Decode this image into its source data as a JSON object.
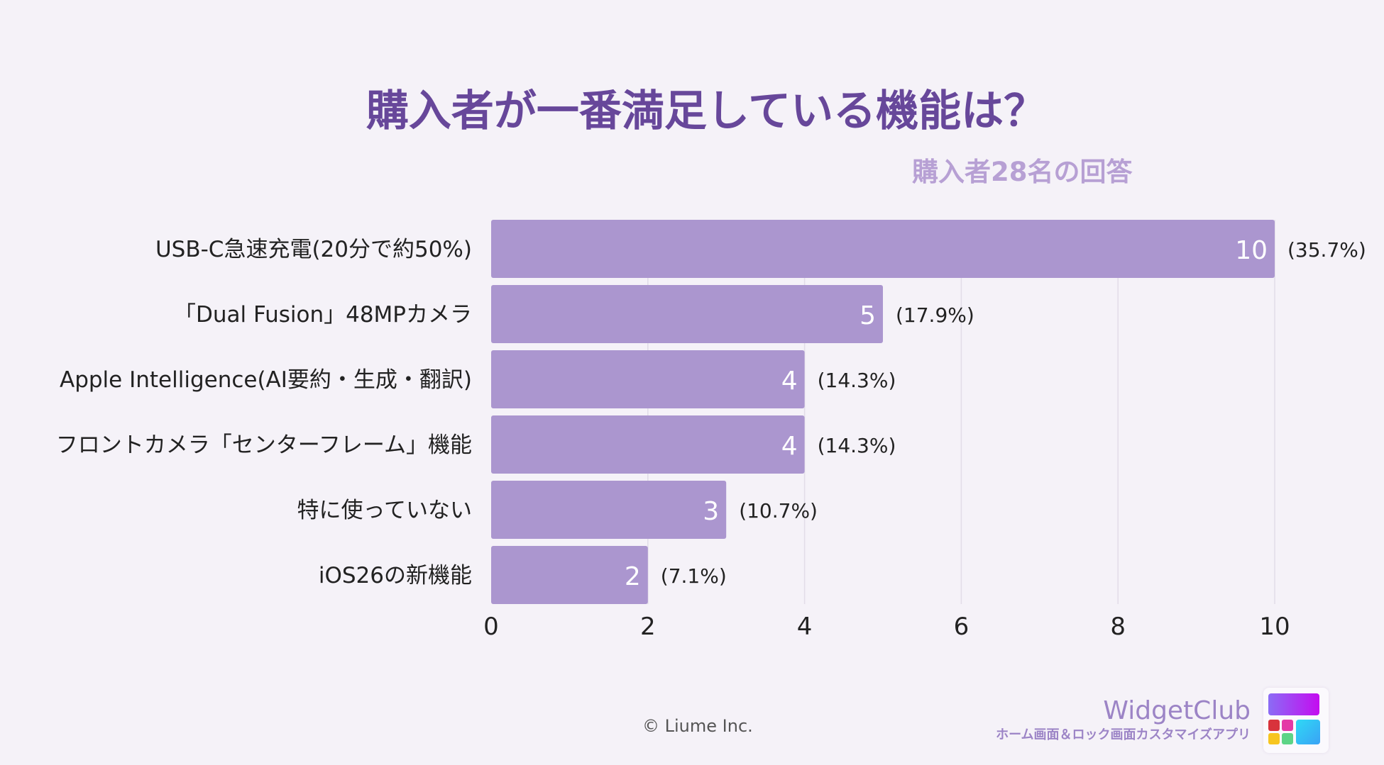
{
  "title": "購入者が一番満足している機能は？",
  "subtitle": "購入者28名の回答",
  "chart_data": {
    "type": "bar",
    "orientation": "horizontal",
    "categories": [
      "USB-C急速充電(20分で約50%)",
      "「Dual Fusion」48MPカメラ",
      "Apple Intelligence(AI要約・生成・翻訳)",
      "フロントカメラ「センターフレーム」機能",
      "特に使っていない",
      "iOS26の新機能"
    ],
    "values": [
      10,
      5,
      4,
      4,
      3,
      2
    ],
    "percent_labels": [
      "(35.7%)",
      "(17.9%)",
      "(14.3%)",
      "(14.3%)",
      "(10.7%)",
      "(7.1%)"
    ],
    "xlim": [
      0,
      10
    ],
    "xticks": [
      0,
      2,
      4,
      6,
      8,
      10
    ],
    "grid": true,
    "bar_color": "#ab96cf"
  },
  "footer": {
    "copyright": "© Liume Inc.",
    "brand": "WidgetClub",
    "tagline": "ホーム画面＆ロック画面カスタマイズアプリ"
  }
}
